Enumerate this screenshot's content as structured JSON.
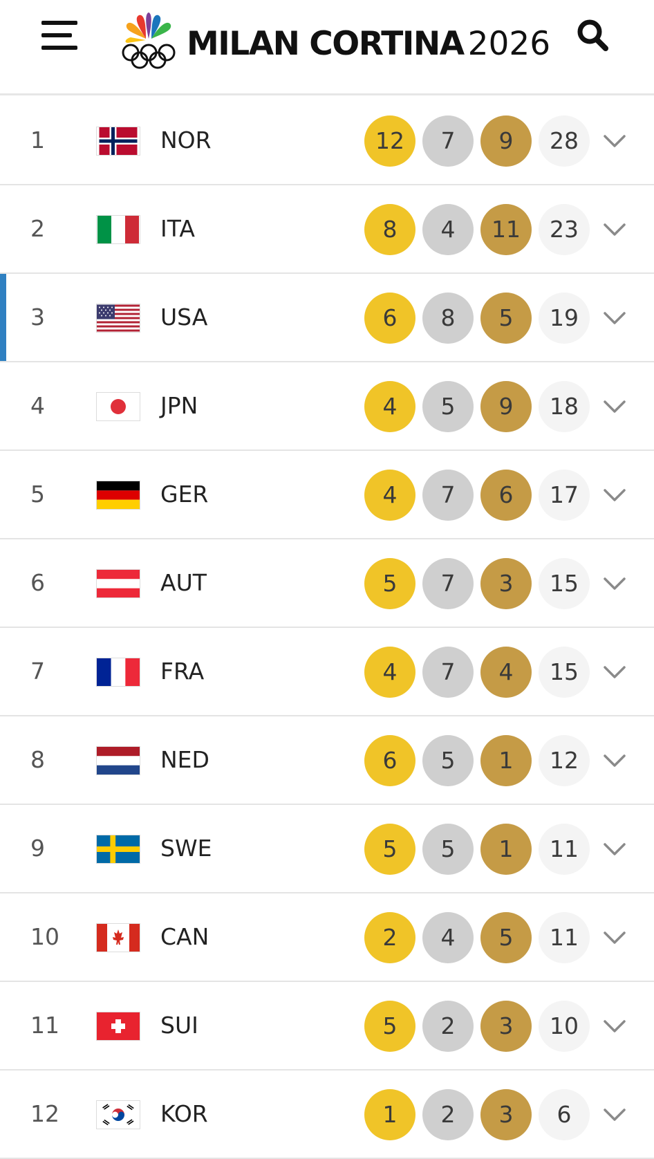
{
  "header": {
    "logo_text": "MILAN CORTINA",
    "logo_year": "2026",
    "menu_icon": "hamburger-menu-icon",
    "search_icon": "search-icon",
    "logo_icon": "peacock-olympic-rings-icon"
  },
  "colors": {
    "gold": "#f0c428",
    "silver": "#cfcfcf",
    "bronze": "#c59b46",
    "total": "#f4f4f4",
    "selected_accent": "#2f80c1"
  },
  "rows": [
    {
      "rank": "1",
      "code": "NOR",
      "flag": "norway-flag-icon",
      "gold": "12",
      "silver": "7",
      "bronze": "9",
      "total": "28"
    },
    {
      "rank": "2",
      "code": "ITA",
      "flag": "italy-flag-icon",
      "gold": "8",
      "silver": "4",
      "bronze": "11",
      "total": "23"
    },
    {
      "rank": "3",
      "code": "USA",
      "flag": "usa-flag-icon",
      "gold": "6",
      "silver": "8",
      "bronze": "5",
      "total": "19",
      "selected": true
    },
    {
      "rank": "4",
      "code": "JPN",
      "flag": "japan-flag-icon",
      "gold": "4",
      "silver": "5",
      "bronze": "9",
      "total": "18"
    },
    {
      "rank": "5",
      "code": "GER",
      "flag": "germany-flag-icon",
      "gold": "4",
      "silver": "7",
      "bronze": "6",
      "total": "17"
    },
    {
      "rank": "6",
      "code": "AUT",
      "flag": "austria-flag-icon",
      "gold": "5",
      "silver": "7",
      "bronze": "3",
      "total": "15"
    },
    {
      "rank": "7",
      "code": "FRA",
      "flag": "france-flag-icon",
      "gold": "4",
      "silver": "7",
      "bronze": "4",
      "total": "15"
    },
    {
      "rank": "8",
      "code": "NED",
      "flag": "netherlands-flag-icon",
      "gold": "6",
      "silver": "5",
      "bronze": "1",
      "total": "12"
    },
    {
      "rank": "9",
      "code": "SWE",
      "flag": "sweden-flag-icon",
      "gold": "5",
      "silver": "5",
      "bronze": "1",
      "total": "11"
    },
    {
      "rank": "10",
      "code": "CAN",
      "flag": "canada-flag-icon",
      "gold": "2",
      "silver": "4",
      "bronze": "5",
      "total": "11"
    },
    {
      "rank": "11",
      "code": "SUI",
      "flag": "switzerland-flag-icon",
      "gold": "5",
      "silver": "2",
      "bronze": "3",
      "total": "10"
    },
    {
      "rank": "12",
      "code": "KOR",
      "flag": "south-korea-flag-icon",
      "gold": "1",
      "silver": "2",
      "bronze": "3",
      "total": "6"
    }
  ]
}
